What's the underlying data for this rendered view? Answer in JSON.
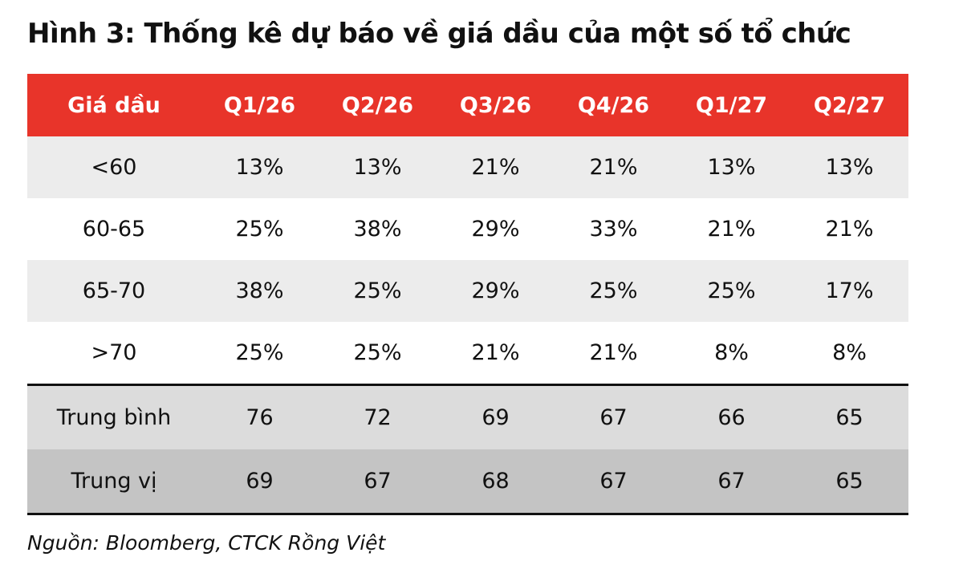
{
  "title": "Hình 3: Thống kê dự báo về giá dầu của một số tổ chức",
  "table": {
    "headers": [
      "Giá dầu",
      "Q1/26",
      "Q2/26",
      "Q3/26",
      "Q4/26",
      "Q1/27",
      "Q2/27"
    ],
    "rows": [
      {
        "label": "<60",
        "values": [
          "13%",
          "13%",
          "21%",
          "21%",
          "13%",
          "13%"
        ]
      },
      {
        "label": "60-65",
        "values": [
          "25%",
          "38%",
          "29%",
          "33%",
          "21%",
          "21%"
        ]
      },
      {
        "label": "65-70",
        "values": [
          "38%",
          "25%",
          "29%",
          "25%",
          "25%",
          "17%"
        ]
      },
      {
        "label": ">70",
        "values": [
          "25%",
          "25%",
          "21%",
          "21%",
          "8%",
          "8%"
        ]
      }
    ],
    "mean": {
      "label": "Trung bình",
      "values": [
        "76",
        "72",
        "69",
        "67",
        "66",
        "65"
      ]
    },
    "median": {
      "label": "Trung vị",
      "values": [
        "69",
        "67",
        "68",
        "67",
        "67",
        "65"
      ]
    }
  },
  "source": "Nguồn: Bloomberg, CTCK Rồng Việt",
  "colors": {
    "header_bg": "#e8342a",
    "row_alt_bg": "#ececec",
    "mean_bg": "#dcdcdc",
    "median_bg": "#c4c4c4"
  }
}
